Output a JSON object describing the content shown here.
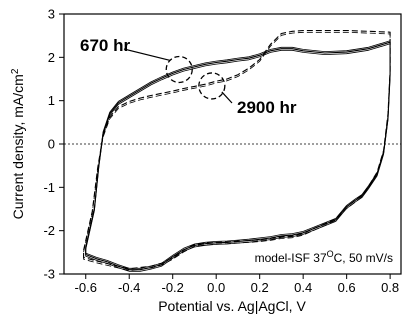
{
  "chart_data": {
    "type": "line",
    "xlabel": "Potential vs. Ag|AgCl, V",
    "ylabel": "Current density, mA/cm",
    "ylabel_sup": "2",
    "xlim": [
      -0.7,
      0.85
    ],
    "ylim": [
      -3,
      3
    ],
    "xticks": [
      "-0.6",
      "-0.4",
      "-0.2",
      "0.0",
      "0.2",
      "0.4",
      "0.6",
      "0.8"
    ],
    "yticks": [
      "-3",
      "-2",
      "-1",
      "0",
      "1",
      "2",
      "3"
    ],
    "zero_line": {
      "y": 0,
      "style": "dotted"
    },
    "grid": false,
    "annotations": [
      {
        "text": "670 hr",
        "target": {
          "x": -0.17,
          "y": 1.72
        }
      },
      {
        "text": "2900 hr",
        "target": {
          "x": -0.02,
          "y": 1.34
        }
      }
    ],
    "condition_label": {
      "pre": "model-ISF 37",
      "sup": "O",
      "post": "C, 50 mV/s"
    },
    "series": [
      {
        "style": "solid",
        "x": [
          -0.6,
          -0.56,
          -0.54,
          -0.52,
          -0.49,
          -0.45,
          -0.4,
          -0.35,
          -0.3,
          -0.25,
          -0.2,
          -0.15,
          -0.1,
          -0.05,
          0.0,
          0.05,
          0.1,
          0.15,
          0.2,
          0.25,
          0.3,
          0.35,
          0.4,
          0.5,
          0.6,
          0.7,
          0.8,
          0.8,
          0.79,
          0.77,
          0.74,
          0.7,
          0.67,
          0.64,
          0.6,
          0.55,
          0.5,
          0.45,
          0.4,
          0.35,
          0.3,
          0.25,
          0.2,
          0.15,
          0.1,
          0.05,
          0.0,
          -0.05,
          -0.1,
          -0.15,
          -0.2,
          -0.25,
          -0.3,
          -0.35,
          -0.4,
          -0.45,
          -0.5,
          -0.55,
          -0.6
        ],
        "y": [
          -2.4,
          -1.5,
          -0.5,
          0.25,
          0.7,
          0.95,
          1.1,
          1.25,
          1.4,
          1.52,
          1.63,
          1.72,
          1.78,
          1.84,
          1.88,
          1.91,
          1.95,
          1.98,
          2.05,
          2.15,
          2.2,
          2.2,
          2.15,
          2.1,
          2.12,
          2.2,
          2.35,
          1.6,
          0.6,
          -0.2,
          -0.7,
          -1.0,
          -1.2,
          -1.3,
          -1.45,
          -1.75,
          -1.85,
          -1.95,
          -2.05,
          -2.1,
          -2.12,
          -2.17,
          -2.2,
          -2.23,
          -2.25,
          -2.27,
          -2.28,
          -2.3,
          -2.34,
          -2.44,
          -2.6,
          -2.78,
          -2.85,
          -2.9,
          -2.9,
          -2.82,
          -2.72,
          -2.65,
          -2.55
        ]
      },
      {
        "style": "dashed",
        "x": [
          -0.61,
          -0.57,
          -0.545,
          -0.52,
          -0.49,
          -0.45,
          -0.4,
          -0.35,
          -0.3,
          -0.25,
          -0.2,
          -0.15,
          -0.1,
          -0.05,
          0.0,
          0.05,
          0.1,
          0.15,
          0.2,
          0.25,
          0.3,
          0.35,
          0.4,
          0.5,
          0.6,
          0.7,
          0.8,
          0.8,
          0.79,
          0.77,
          0.74,
          0.7,
          0.67,
          0.64,
          0.6,
          0.55,
          0.5,
          0.45,
          0.4,
          0.35,
          0.3,
          0.25,
          0.2,
          0.15,
          0.1,
          0.05,
          0.0,
          -0.05,
          -0.1,
          -0.15,
          -0.2,
          -0.25,
          -0.3,
          -0.35,
          -0.4,
          -0.45,
          -0.5,
          -0.55,
          -0.61
        ],
        "y": [
          -2.45,
          -1.55,
          -0.55,
          0.2,
          0.62,
          0.86,
          0.98,
          1.06,
          1.12,
          1.17,
          1.22,
          1.28,
          1.33,
          1.38,
          1.45,
          1.5,
          1.6,
          1.75,
          1.95,
          2.3,
          2.55,
          2.6,
          2.62,
          2.62,
          2.62,
          2.6,
          2.58,
          1.7,
          0.7,
          -0.15,
          -0.65,
          -0.98,
          -1.18,
          -1.3,
          -1.45,
          -1.72,
          -1.84,
          -1.95,
          -2.06,
          -2.12,
          -2.14,
          -2.18,
          -2.21,
          -2.23,
          -2.24,
          -2.26,
          -2.27,
          -2.29,
          -2.32,
          -2.45,
          -2.62,
          -2.75,
          -2.82,
          -2.85,
          -2.88,
          -2.82,
          -2.76,
          -2.7,
          -2.62
        ]
      }
    ]
  }
}
